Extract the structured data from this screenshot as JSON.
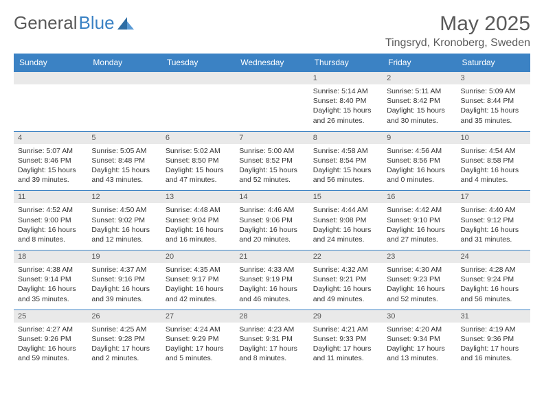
{
  "brand": {
    "part1": "General",
    "part2": "Blue"
  },
  "title": "May 2025",
  "location": "Tingsryd, Kronoberg, Sweden",
  "colors": {
    "header_bg": "#3b82c4",
    "header_fg": "#ffffff",
    "daynum_bg": "#e9e9e9",
    "text": "#333333",
    "title_color": "#5a5a5a"
  },
  "weekdays": [
    "Sunday",
    "Monday",
    "Tuesday",
    "Wednesday",
    "Thursday",
    "Friday",
    "Saturday"
  ],
  "weeks": [
    [
      null,
      null,
      null,
      null,
      {
        "n": "1",
        "sr": "Sunrise: 5:14 AM",
        "ss": "Sunset: 8:40 PM",
        "dl": "Daylight: 15 hours and 26 minutes."
      },
      {
        "n": "2",
        "sr": "Sunrise: 5:11 AM",
        "ss": "Sunset: 8:42 PM",
        "dl": "Daylight: 15 hours and 30 minutes."
      },
      {
        "n": "3",
        "sr": "Sunrise: 5:09 AM",
        "ss": "Sunset: 8:44 PM",
        "dl": "Daylight: 15 hours and 35 minutes."
      }
    ],
    [
      {
        "n": "4",
        "sr": "Sunrise: 5:07 AM",
        "ss": "Sunset: 8:46 PM",
        "dl": "Daylight: 15 hours and 39 minutes."
      },
      {
        "n": "5",
        "sr": "Sunrise: 5:05 AM",
        "ss": "Sunset: 8:48 PM",
        "dl": "Daylight: 15 hours and 43 minutes."
      },
      {
        "n": "6",
        "sr": "Sunrise: 5:02 AM",
        "ss": "Sunset: 8:50 PM",
        "dl": "Daylight: 15 hours and 47 minutes."
      },
      {
        "n": "7",
        "sr": "Sunrise: 5:00 AM",
        "ss": "Sunset: 8:52 PM",
        "dl": "Daylight: 15 hours and 52 minutes."
      },
      {
        "n": "8",
        "sr": "Sunrise: 4:58 AM",
        "ss": "Sunset: 8:54 PM",
        "dl": "Daylight: 15 hours and 56 minutes."
      },
      {
        "n": "9",
        "sr": "Sunrise: 4:56 AM",
        "ss": "Sunset: 8:56 PM",
        "dl": "Daylight: 16 hours and 0 minutes."
      },
      {
        "n": "10",
        "sr": "Sunrise: 4:54 AM",
        "ss": "Sunset: 8:58 PM",
        "dl": "Daylight: 16 hours and 4 minutes."
      }
    ],
    [
      {
        "n": "11",
        "sr": "Sunrise: 4:52 AM",
        "ss": "Sunset: 9:00 PM",
        "dl": "Daylight: 16 hours and 8 minutes."
      },
      {
        "n": "12",
        "sr": "Sunrise: 4:50 AM",
        "ss": "Sunset: 9:02 PM",
        "dl": "Daylight: 16 hours and 12 minutes."
      },
      {
        "n": "13",
        "sr": "Sunrise: 4:48 AM",
        "ss": "Sunset: 9:04 PM",
        "dl": "Daylight: 16 hours and 16 minutes."
      },
      {
        "n": "14",
        "sr": "Sunrise: 4:46 AM",
        "ss": "Sunset: 9:06 PM",
        "dl": "Daylight: 16 hours and 20 minutes."
      },
      {
        "n": "15",
        "sr": "Sunrise: 4:44 AM",
        "ss": "Sunset: 9:08 PM",
        "dl": "Daylight: 16 hours and 24 minutes."
      },
      {
        "n": "16",
        "sr": "Sunrise: 4:42 AM",
        "ss": "Sunset: 9:10 PM",
        "dl": "Daylight: 16 hours and 27 minutes."
      },
      {
        "n": "17",
        "sr": "Sunrise: 4:40 AM",
        "ss": "Sunset: 9:12 PM",
        "dl": "Daylight: 16 hours and 31 minutes."
      }
    ],
    [
      {
        "n": "18",
        "sr": "Sunrise: 4:38 AM",
        "ss": "Sunset: 9:14 PM",
        "dl": "Daylight: 16 hours and 35 minutes."
      },
      {
        "n": "19",
        "sr": "Sunrise: 4:37 AM",
        "ss": "Sunset: 9:16 PM",
        "dl": "Daylight: 16 hours and 39 minutes."
      },
      {
        "n": "20",
        "sr": "Sunrise: 4:35 AM",
        "ss": "Sunset: 9:17 PM",
        "dl": "Daylight: 16 hours and 42 minutes."
      },
      {
        "n": "21",
        "sr": "Sunrise: 4:33 AM",
        "ss": "Sunset: 9:19 PM",
        "dl": "Daylight: 16 hours and 46 minutes."
      },
      {
        "n": "22",
        "sr": "Sunrise: 4:32 AM",
        "ss": "Sunset: 9:21 PM",
        "dl": "Daylight: 16 hours and 49 minutes."
      },
      {
        "n": "23",
        "sr": "Sunrise: 4:30 AM",
        "ss": "Sunset: 9:23 PM",
        "dl": "Daylight: 16 hours and 52 minutes."
      },
      {
        "n": "24",
        "sr": "Sunrise: 4:28 AM",
        "ss": "Sunset: 9:24 PM",
        "dl": "Daylight: 16 hours and 56 minutes."
      }
    ],
    [
      {
        "n": "25",
        "sr": "Sunrise: 4:27 AM",
        "ss": "Sunset: 9:26 PM",
        "dl": "Daylight: 16 hours and 59 minutes."
      },
      {
        "n": "26",
        "sr": "Sunrise: 4:25 AM",
        "ss": "Sunset: 9:28 PM",
        "dl": "Daylight: 17 hours and 2 minutes."
      },
      {
        "n": "27",
        "sr": "Sunrise: 4:24 AM",
        "ss": "Sunset: 9:29 PM",
        "dl": "Daylight: 17 hours and 5 minutes."
      },
      {
        "n": "28",
        "sr": "Sunrise: 4:23 AM",
        "ss": "Sunset: 9:31 PM",
        "dl": "Daylight: 17 hours and 8 minutes."
      },
      {
        "n": "29",
        "sr": "Sunrise: 4:21 AM",
        "ss": "Sunset: 9:33 PM",
        "dl": "Daylight: 17 hours and 11 minutes."
      },
      {
        "n": "30",
        "sr": "Sunrise: 4:20 AM",
        "ss": "Sunset: 9:34 PM",
        "dl": "Daylight: 17 hours and 13 minutes."
      },
      {
        "n": "31",
        "sr": "Sunrise: 4:19 AM",
        "ss": "Sunset: 9:36 PM",
        "dl": "Daylight: 17 hours and 16 minutes."
      }
    ]
  ]
}
